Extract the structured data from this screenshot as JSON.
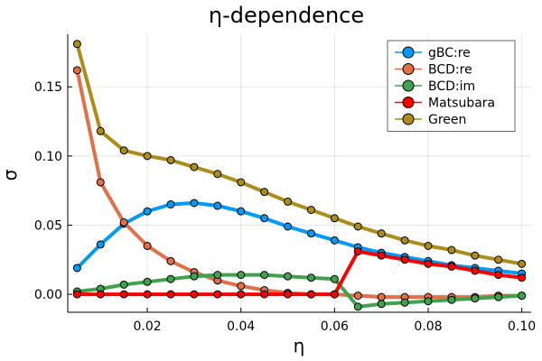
{
  "chart_data": {
    "type": "line",
    "title": "η-dependence",
    "xlabel": "η",
    "ylabel": "σ",
    "xlim": [
      0.003,
      0.102
    ],
    "ylim": [
      -0.013,
      0.188
    ],
    "xticks": [
      0.02,
      0.04,
      0.06,
      0.08,
      0.1
    ],
    "xtick_labels": [
      "0.02",
      "0.04",
      "0.06",
      "0.08",
      "0.10"
    ],
    "yticks": [
      0.0,
      0.05,
      0.1,
      0.15
    ],
    "ytick_labels": [
      "0.00",
      "0.05",
      "0.10",
      "0.15"
    ],
    "grid": true,
    "legend_position": "top-right",
    "x": [
      0.005,
      0.01,
      0.015,
      0.02,
      0.025,
      0.03,
      0.035,
      0.04,
      0.045,
      0.05,
      0.055,
      0.06,
      0.065,
      0.07,
      0.075,
      0.08,
      0.085,
      0.09,
      0.095,
      0.1
    ],
    "series": [
      {
        "name": "gBC:re",
        "color": "#009af9",
        "values": [
          0.019,
          0.036,
          0.051,
          0.06,
          0.065,
          0.066,
          0.064,
          0.06,
          0.055,
          0.049,
          0.044,
          0.039,
          0.034,
          0.03,
          0.027,
          0.024,
          0.021,
          0.019,
          0.017,
          0.015
        ]
      },
      {
        "name": "BCD:re",
        "color": "#e26f46",
        "values": [
          0.162,
          0.081,
          0.052,
          0.035,
          0.024,
          0.016,
          0.01,
          0.006,
          0.003,
          0.001,
          0.0,
          0.0,
          -0.001,
          -0.002,
          -0.002,
          -0.002,
          -0.002,
          -0.002,
          -0.001,
          -0.001
        ]
      },
      {
        "name": "BCD:im",
        "color": "#3da44d",
        "values": [
          0.002,
          0.004,
          0.007,
          0.009,
          0.011,
          0.013,
          0.014,
          0.014,
          0.014,
          0.013,
          0.012,
          0.011,
          -0.009,
          -0.007,
          -0.006,
          -0.005,
          -0.004,
          -0.003,
          -0.002,
          -0.001
        ]
      },
      {
        "name": "Matsubara",
        "color": "#ff0000",
        "values": [
          0.0,
          0.0,
          0.0,
          0.0,
          0.0,
          0.0,
          0.0,
          0.0,
          0.0,
          0.0,
          0.0,
          0.0,
          0.031,
          0.028,
          0.025,
          0.022,
          0.02,
          0.017,
          0.014,
          0.012
        ]
      },
      {
        "name": "Green",
        "color": "#ac8d18",
        "values": [
          0.181,
          0.118,
          0.104,
          0.1,
          0.097,
          0.092,
          0.087,
          0.081,
          0.074,
          0.067,
          0.061,
          0.055,
          0.049,
          0.044,
          0.039,
          0.035,
          0.032,
          0.028,
          0.025,
          0.022
        ]
      }
    ]
  }
}
